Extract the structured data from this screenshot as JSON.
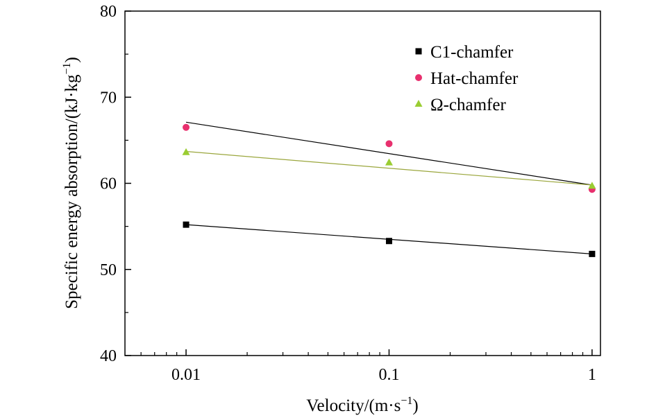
{
  "chart_data": {
    "type": "scatter",
    "xlabel": "Velocity/(m·s",
    "xlabel_sup": "−1",
    "xlabel_end": ")",
    "ylabel": "Specific energy absorption/(kJ·kg",
    "ylabel_sup": "−1",
    "ylabel_end": ")",
    "xscale": "log",
    "xlim": [
      0.005,
      1.1
    ],
    "ylim": [
      40,
      80
    ],
    "xticks": [
      0.01,
      0.1,
      1
    ],
    "xtick_labels": [
      "0.01",
      "0.1",
      "1"
    ],
    "yticks": [
      40,
      50,
      60,
      70,
      80
    ],
    "ytick_labels": [
      "40",
      "50",
      "60",
      "70",
      "80"
    ],
    "grid": false,
    "legend_position": "top-right",
    "series": [
      {
        "name": "C1-chamfer",
        "marker": "square",
        "color": "#000000",
        "fit_color": "#000000",
        "x": [
          0.01,
          0.1,
          1
        ],
        "y": [
          55.2,
          53.3,
          51.8
        ],
        "fit": [
          55.2,
          51.8
        ]
      },
      {
        "name": "Hat-chamfer",
        "marker": "circle",
        "color": "#e8306e",
        "fit_color": "#000000",
        "x": [
          0.01,
          0.1,
          1
        ],
        "y": [
          66.5,
          64.6,
          59.3
        ],
        "fit": [
          67.1,
          59.8
        ]
      },
      {
        "name": "Ω-chamfer",
        "marker": "triangle",
        "color": "#9acd32",
        "fit_color": "#9aa63c",
        "x": [
          0.01,
          0.1,
          1
        ],
        "y": [
          63.6,
          62.4,
          59.7
        ],
        "fit": [
          63.7,
          59.8
        ]
      }
    ]
  }
}
